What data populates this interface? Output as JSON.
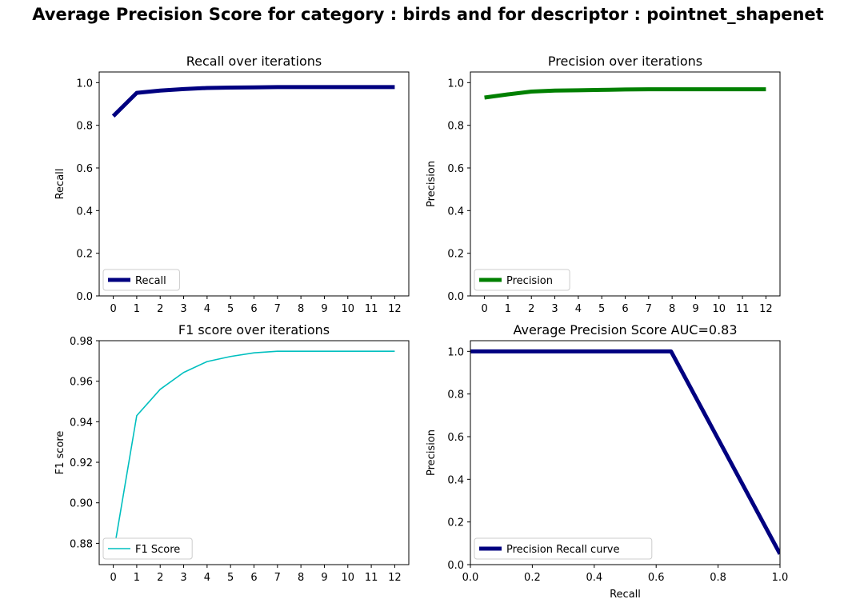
{
  "figure": {
    "title": "Average Precision Score for category : birds and for descriptor : pointnet_shapenet"
  },
  "chart_data": [
    {
      "type": "line",
      "title": "Recall over iterations",
      "xlabel": "",
      "ylabel": "Recall",
      "xlim": [
        -0.6,
        12.6
      ],
      "ylim": [
        0.0,
        1.05
      ],
      "xticks": [
        0,
        1,
        2,
        3,
        4,
        5,
        6,
        7,
        8,
        9,
        10,
        11,
        12
      ],
      "yticks": [
        0.0,
        0.2,
        0.4,
        0.6,
        0.8,
        1.0
      ],
      "ytick_decimals": 1,
      "grid": false,
      "legend": "lower left",
      "series": [
        {
          "name": "Recall",
          "color": "#000080",
          "width": "thick",
          "x": [
            0,
            1,
            2,
            3,
            4,
            5,
            6,
            7,
            8,
            9,
            10,
            11,
            12
          ],
          "y": [
            0.843,
            0.952,
            0.963,
            0.97,
            0.975,
            0.977,
            0.978,
            0.979,
            0.979,
            0.979,
            0.979,
            0.979,
            0.979
          ]
        }
      ]
    },
    {
      "type": "line",
      "title": "Precision over iterations",
      "xlabel": "",
      "ylabel": "Precision",
      "xlim": [
        -0.6,
        12.6
      ],
      "ylim": [
        0.0,
        1.05
      ],
      "xticks": [
        0,
        1,
        2,
        3,
        4,
        5,
        6,
        7,
        8,
        9,
        10,
        11,
        12
      ],
      "yticks": [
        0.0,
        0.2,
        0.4,
        0.6,
        0.8,
        1.0
      ],
      "ytick_decimals": 1,
      "grid": false,
      "legend": "lower left",
      "series": [
        {
          "name": "Precision",
          "color": "#008000",
          "width": "thick",
          "x": [
            0,
            1,
            2,
            3,
            4,
            5,
            6,
            7,
            8,
            9,
            10,
            11,
            12
          ],
          "y": [
            0.93,
            0.945,
            0.958,
            0.963,
            0.964,
            0.966,
            0.968,
            0.969,
            0.969,
            0.969,
            0.969,
            0.969,
            0.969
          ]
        }
      ]
    },
    {
      "type": "line",
      "title": "F1 score over iterations",
      "xlabel": "",
      "ylabel": "F1 score",
      "xlim": [
        -0.6,
        12.6
      ],
      "ylim": [
        0.8695,
        0.98
      ],
      "xticks": [
        0,
        1,
        2,
        3,
        4,
        5,
        6,
        7,
        8,
        9,
        10,
        11,
        12
      ],
      "yticks": [
        0.88,
        0.9,
        0.92,
        0.94,
        0.96,
        0.98
      ],
      "ytick_decimals": 2,
      "grid": false,
      "legend": "lower left",
      "series": [
        {
          "name": "F1 Score",
          "color": "#00bfbf",
          "width": "thin",
          "x": [
            0,
            1,
            2,
            3,
            4,
            5,
            6,
            7,
            8,
            9,
            10,
            11,
            12
          ],
          "y": [
            0.8745,
            0.943,
            0.956,
            0.9643,
            0.9697,
            0.9722,
            0.974,
            0.9748,
            0.9748,
            0.9748,
            0.9748,
            0.9748,
            0.9748
          ]
        }
      ]
    },
    {
      "type": "line",
      "title": "Average Precision Score AUC=0.83",
      "xlabel": "Recall",
      "ylabel": "Precision",
      "xlim": [
        0.0,
        1.0
      ],
      "ylim": [
        0.0,
        1.05
      ],
      "xticks": [
        0.0,
        0.2,
        0.4,
        0.6,
        0.8,
        1.0
      ],
      "yticks": [
        0.0,
        0.2,
        0.4,
        0.6,
        0.8,
        1.0
      ],
      "xtick_decimals": 1,
      "ytick_decimals": 1,
      "grid": false,
      "legend": "lower left",
      "series": [
        {
          "name": "Precision Recall curve",
          "color": "#000080",
          "width": "thick",
          "x": [
            0.0,
            0.648,
            1.0
          ],
          "y": [
            1.0,
            1.0,
            0.05
          ]
        }
      ]
    }
  ]
}
